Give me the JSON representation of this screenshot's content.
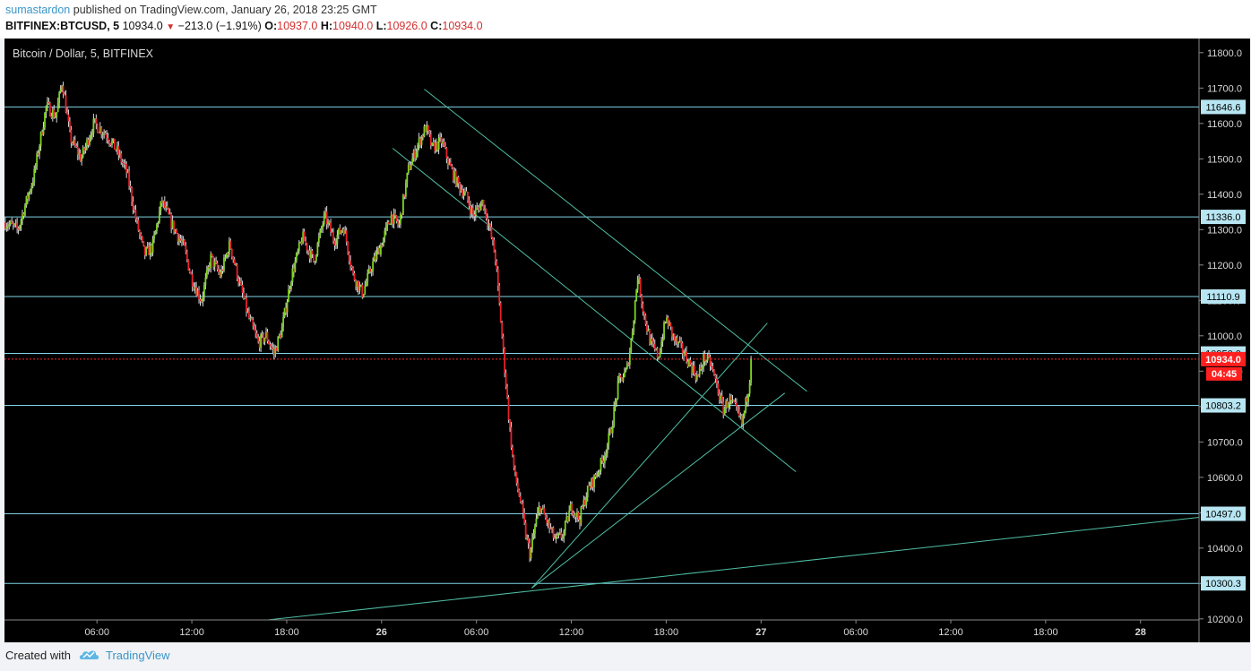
{
  "header": {
    "publisher": "sumastardon",
    "published_text": "published on TradingView.com, January 26, 2018 23:25 GMT",
    "symbol": "BITFINEX:BTCUSD, 5",
    "last": "10934.0",
    "change": "−213.0 (−1.91%)",
    "open_label": "O:",
    "open": "10937.0",
    "high_label": "H:",
    "high": "10940.0",
    "low_label": "L:",
    "low": "10926.0",
    "close_label": "C:",
    "close": "10934.0",
    "down_arrow_icon": "triangle-down-icon"
  },
  "footer": {
    "created_with": "Created with",
    "brand": "TradingView",
    "logo_icon": "tradingview-cloud-icon"
  },
  "chart_data": {
    "type": "candlestick",
    "title": "Bitcoin / Dollar, 5, BITFINEX",
    "y_axis": {
      "position": "right",
      "ylim": [
        10197,
        11840
      ],
      "ticks": [
        "10200.0",
        "10300.0",
        "10400.0",
        "10500.0",
        "10600.0",
        "10700.0",
        "10800.0",
        "10900.0",
        "11000.0",
        "11100.0",
        "11200.0",
        "11300.0",
        "11400.0",
        "11500.0",
        "11600.0",
        "11700.0",
        "11800.0"
      ],
      "tick_values": [
        10200,
        10300,
        10400,
        10500,
        10600,
        10700,
        10800,
        10900,
        11000,
        11100,
        11200,
        11300,
        11400,
        11500,
        11600,
        11700,
        11800
      ]
    },
    "x_axis": {
      "ticks": [
        "06:00",
        "12:00",
        "18:00",
        "26",
        "06:00",
        "12:00",
        "18:00",
        "27",
        "06:00",
        "12:00",
        "18:00",
        "28"
      ],
      "tick_hours": [
        6,
        12,
        18,
        24,
        30,
        36,
        42,
        48,
        54,
        60,
        66,
        72
      ],
      "xlim_hours": [
        0.15,
        75.7
      ],
      "unit": "hours since 2018-01-25 00:00 GMT"
    },
    "horizontal_levels": [
      {
        "label": "11646.6",
        "value": 11646.6
      },
      {
        "label": "11336.0",
        "value": 11336.0
      },
      {
        "label": "11110.9",
        "value": 11110.9
      },
      {
        "label": "10950.0",
        "value": 10950.0
      },
      {
        "label": "10803.2",
        "value": 10803.2
      },
      {
        "label": "10497.0",
        "value": 10497.0
      },
      {
        "label": "10300.3",
        "value": 10300.3
      }
    ],
    "current_price": {
      "label": "10934.0",
      "value": 10934.0,
      "countdown": "04:45"
    },
    "trendlines": [
      {
        "x1": 26.7,
        "y1": 11697,
        "x2": 50.9,
        "y2": 10843
      },
      {
        "x1": 24.7,
        "y1": 11530,
        "x2": 50.2,
        "y2": 10616
      },
      {
        "x1": 33.5,
        "y1": 10287,
        "x2": 48.4,
        "y2": 11036
      },
      {
        "x1": 33.5,
        "y1": 10287,
        "x2": 49.5,
        "y2": 10838
      },
      {
        "x1": 16.8,
        "y1": 10197,
        "x2": 75.7,
        "y2": 10487
      }
    ],
    "price_path": [
      [
        0.2,
        11320
      ],
      [
        1.0,
        11300
      ],
      [
        2.0,
        11450
      ],
      [
        2.8,
        11650
      ],
      [
        3.4,
        11620
      ],
      [
        3.8,
        11720
      ],
      [
        4.3,
        11560
      ],
      [
        5.0,
        11500
      ],
      [
        5.8,
        11600
      ],
      [
        6.6,
        11570
      ],
      [
        7.3,
        11520
      ],
      [
        7.9,
        11460
      ],
      [
        8.5,
        11320
      ],
      [
        9.0,
        11230
      ],
      [
        9.5,
        11250
      ],
      [
        10.1,
        11380
      ],
      [
        10.8,
        11310
      ],
      [
        11.5,
        11250
      ],
      [
        12.0,
        11160
      ],
      [
        12.6,
        11100
      ],
      [
        13.2,
        11220
      ],
      [
        13.8,
        11170
      ],
      [
        14.4,
        11260
      ],
      [
        15.0,
        11150
      ],
      [
        15.6,
        11050
      ],
      [
        16.2,
        10980
      ],
      [
        16.7,
        11000
      ],
      [
        17.2,
        10950
      ],
      [
        17.7,
        11020
      ],
      [
        18.3,
        11170
      ],
      [
        19.0,
        11280
      ],
      [
        19.7,
        11210
      ],
      [
        20.4,
        11340
      ],
      [
        21.0,
        11270
      ],
      [
        21.6,
        11310
      ],
      [
        22.2,
        11170
      ],
      [
        22.8,
        11120
      ],
      [
        23.4,
        11200
      ],
      [
        24.0,
        11260
      ],
      [
        24.6,
        11340
      ],
      [
        25.1,
        11310
      ],
      [
        25.7,
        11470
      ],
      [
        26.3,
        11540
      ],
      [
        26.8,
        11590
      ],
      [
        27.2,
        11530
      ],
      [
        27.8,
        11550
      ],
      [
        28.3,
        11480
      ],
      [
        28.8,
        11430
      ],
      [
        29.3,
        11400
      ],
      [
        29.8,
        11340
      ],
      [
        30.4,
        11380
      ],
      [
        30.8,
        11310
      ],
      [
        31.2,
        11220
      ],
      [
        31.5,
        11060
      ],
      [
        31.8,
        10900
      ],
      [
        32.1,
        10740
      ],
      [
        32.4,
        10610
      ],
      [
        32.8,
        10530
      ],
      [
        33.1,
        10440
      ],
      [
        33.4,
        10380
      ],
      [
        33.7,
        10460
      ],
      [
        34.0,
        10520
      ],
      [
        34.5,
        10470
      ],
      [
        35.0,
        10420
      ],
      [
        35.5,
        10440
      ],
      [
        36.0,
        10520
      ],
      [
        36.5,
        10480
      ],
      [
        37.0,
        10560
      ],
      [
        37.5,
        10600
      ],
      [
        38.0,
        10650
      ],
      [
        38.5,
        10730
      ],
      [
        39.0,
        10870
      ],
      [
        39.5,
        10900
      ],
      [
        39.8,
        10990
      ],
      [
        40.2,
        11170
      ],
      [
        40.6,
        11060
      ],
      [
        41.0,
        10980
      ],
      [
        41.5,
        10940
      ],
      [
        42.0,
        11050
      ],
      [
        42.5,
        10990
      ],
      [
        43.0,
        10960
      ],
      [
        43.5,
        10920
      ],
      [
        44.0,
        10880
      ],
      [
        44.4,
        10940
      ],
      [
        44.8,
        10920
      ],
      [
        45.2,
        10860
      ],
      [
        45.6,
        10790
      ],
      [
        46.0,
        10820
      ],
      [
        46.4,
        10790
      ],
      [
        46.8,
        10750
      ],
      [
        47.2,
        10850
      ],
      [
        47.4,
        10934
      ]
    ]
  }
}
